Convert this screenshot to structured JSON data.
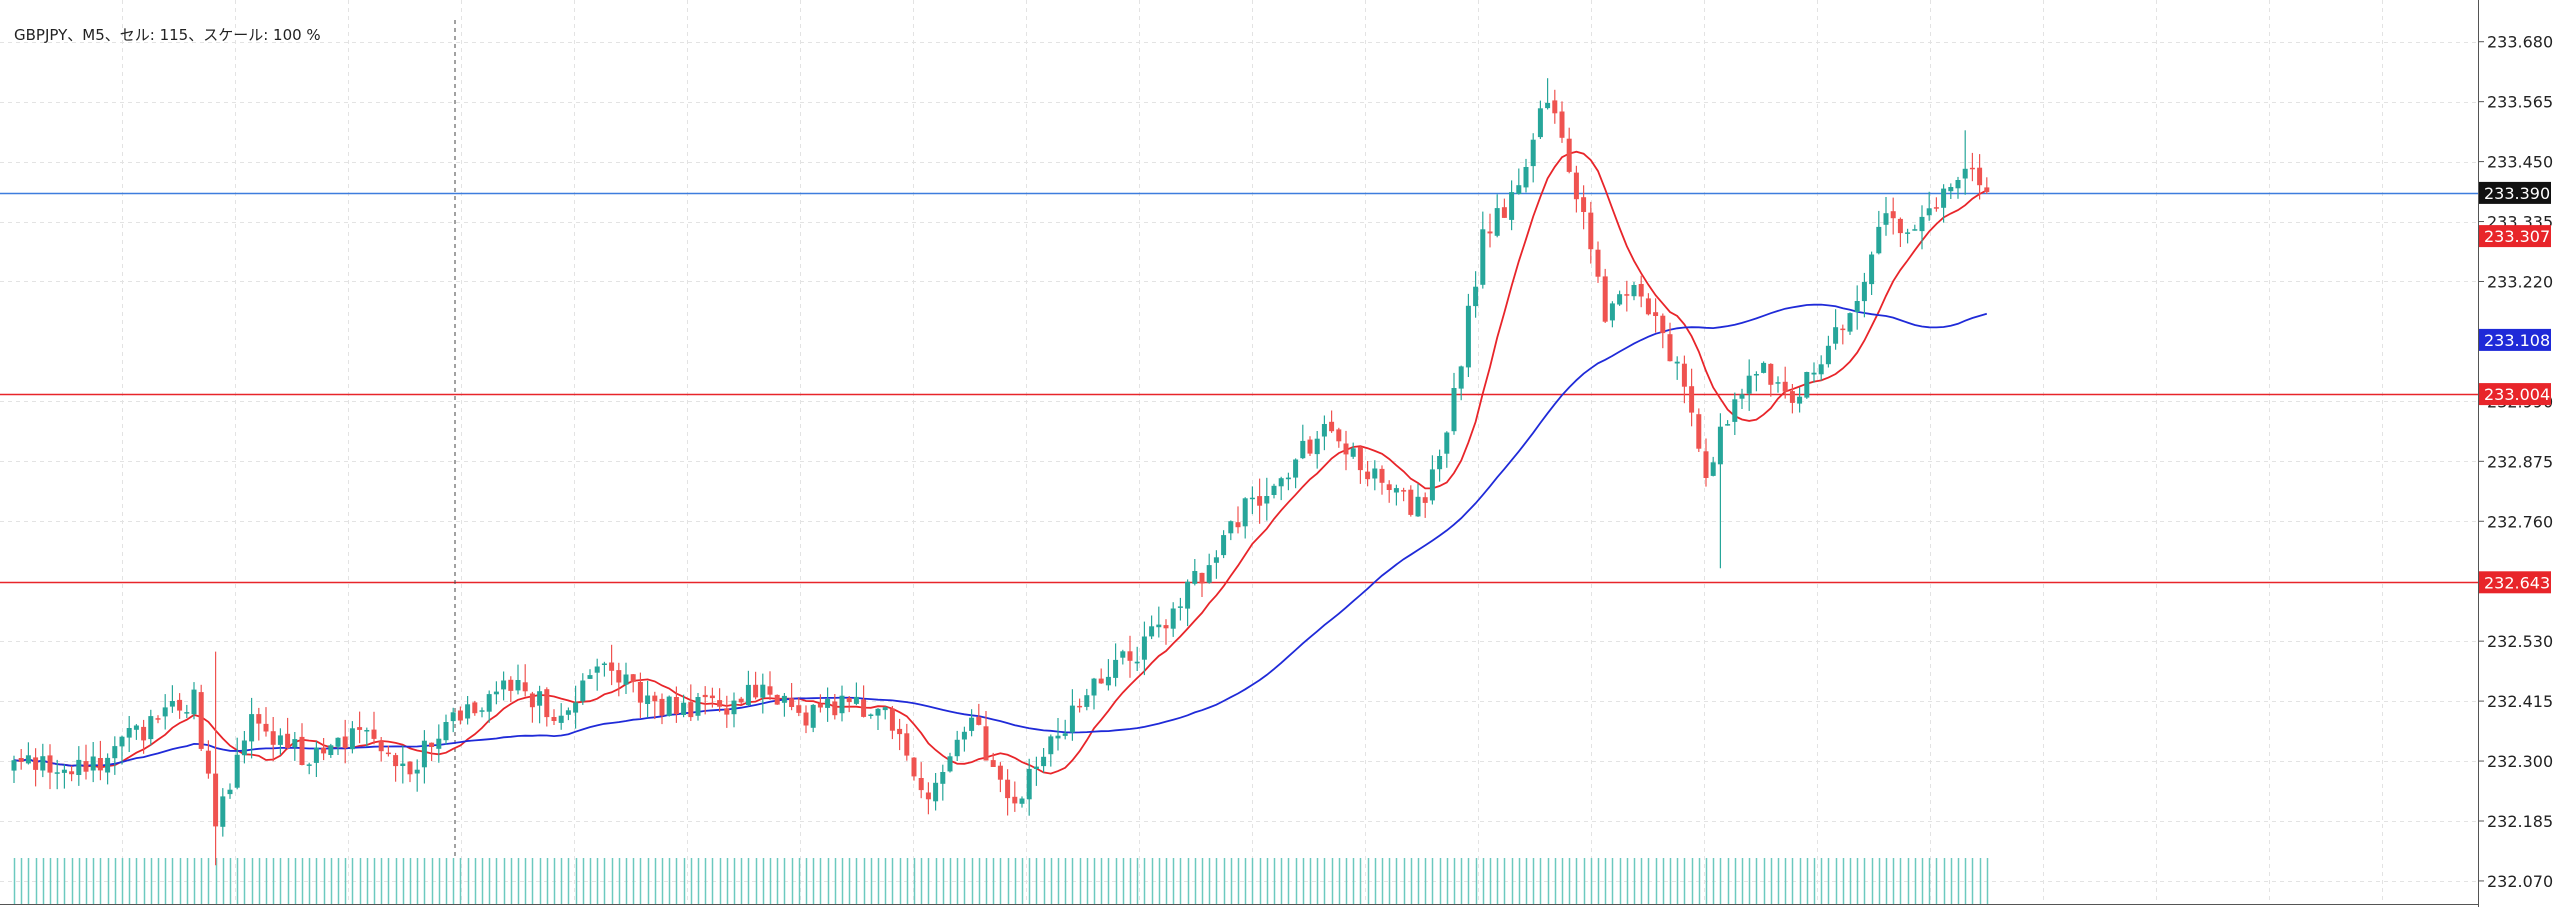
{
  "info_label": "GBPJPY、M5、セル: 115、スケール: 100 %",
  "colors": {
    "up": "#26a69a",
    "down": "#ef5350",
    "ma_fast": "#e8252a",
    "ma_slow": "#1f2ad8",
    "hline_blue": "#3d7dde",
    "hline_red": "#e8252a",
    "grid": "#e3e3e3",
    "volume": "#6cc9bf",
    "current_tag": "#111111"
  },
  "chart_data": {
    "type": "candlestick",
    "symbol": "GBPJPY",
    "timeframe": "M5",
    "ylim": [
      232.02,
      233.76
    ],
    "y_ticks": [
      {
        "value": 233.68,
        "label": "233.680"
      },
      {
        "value": 233.565,
        "label": "233.565"
      },
      {
        "value": 233.45,
        "label": "233.450"
      },
      {
        "value": 233.335,
        "label": "233.335"
      },
      {
        "value": 233.22,
        "label": "233.220"
      },
      {
        "value": 232.99,
        "label": "232.990"
      },
      {
        "value": 232.875,
        "label": "232.875"
      },
      {
        "value": 232.76,
        "label": "232.760"
      },
      {
        "value": 232.53,
        "label": "232.530"
      },
      {
        "value": 232.415,
        "label": "232.415"
      },
      {
        "value": 232.3,
        "label": "232.300"
      },
      {
        "value": 232.185,
        "label": "232.185"
      },
      {
        "value": 232.07,
        "label": "232.070"
      }
    ],
    "price_tags": [
      {
        "value": 233.39,
        "label": "233.390",
        "kind": "current"
      },
      {
        "value": 233.307,
        "label": "233.307",
        "kind": "ma_fast"
      },
      {
        "value": 233.108,
        "label": "233.108",
        "kind": "ma_slow"
      },
      {
        "value": 233.004,
        "label": "233.004",
        "kind": "level"
      },
      {
        "value": 232.643,
        "label": "232.643",
        "kind": "level"
      }
    ],
    "horizontal_lines": [
      {
        "value": 233.39,
        "color": "blue"
      },
      {
        "value": 233.004,
        "color": "red"
      },
      {
        "value": 232.643,
        "color": "red"
      }
    ],
    "anchors": [
      [
        0,
        232.3
      ],
      [
        8,
        232.27
      ],
      [
        18,
        232.36
      ],
      [
        25,
        232.42
      ],
      [
        28,
        232.18
      ],
      [
        33,
        232.38
      ],
      [
        40,
        232.31
      ],
      [
        48,
        232.36
      ],
      [
        54,
        232.28
      ],
      [
        60,
        232.36
      ],
      [
        68,
        232.45
      ],
      [
        75,
        232.4
      ],
      [
        82,
        232.47
      ],
      [
        90,
        232.41
      ],
      [
        98,
        232.4
      ],
      [
        105,
        232.44
      ],
      [
        110,
        232.38
      ],
      [
        116,
        232.42
      ],
      [
        121,
        232.38
      ],
      [
        127,
        232.23
      ],
      [
        133,
        232.38
      ],
      [
        138,
        232.22
      ],
      [
        143,
        232.3
      ],
      [
        149,
        232.44
      ],
      [
        155,
        232.5
      ],
      [
        161,
        232.58
      ],
      [
        167,
        232.7
      ],
      [
        172,
        232.8
      ],
      [
        178,
        232.87
      ],
      [
        182,
        232.95
      ],
      [
        187,
        232.88
      ],
      [
        192,
        232.8
      ],
      [
        196,
        232.78
      ],
      [
        200,
        233.0
      ],
      [
        204,
        233.3
      ],
      [
        209,
        233.4
      ],
      [
        213,
        233.57
      ],
      [
        217,
        233.4
      ],
      [
        221,
        233.15
      ],
      [
        225,
        233.2
      ],
      [
        231,
        233.06
      ],
      [
        235,
        232.85
      ],
      [
        238,
        232.95
      ],
      [
        242,
        233.05
      ],
      [
        247,
        233.0
      ],
      [
        252,
        233.1
      ],
      [
        256,
        233.2
      ],
      [
        260,
        233.34
      ],
      [
        264,
        233.3
      ],
      [
        268,
        233.38
      ],
      [
        271,
        233.45
      ],
      [
        274,
        233.4
      ]
    ],
    "spikes": [
      {
        "i": 28,
        "low": 232.1,
        "high": 232.51
      },
      {
        "i": 237,
        "low": 232.67
      },
      {
        "i": 213,
        "high": 233.61
      },
      {
        "i": 271,
        "high": 233.51
      }
    ],
    "candle_count": 275,
    "ma_fast_period": 10,
    "ma_slow_period": 50
  }
}
